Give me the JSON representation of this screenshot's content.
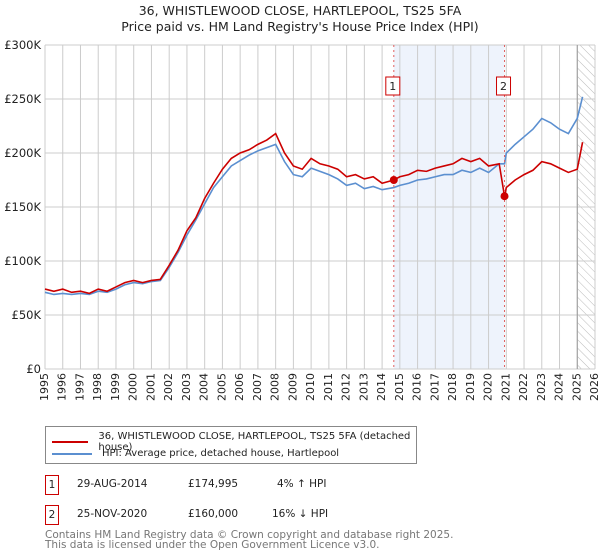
{
  "chart_data": {
    "type": "line",
    "title": "36, WHISTLEWOOD CLOSE, HARTLEPOOL, TS25 5FA",
    "subtitle": "Price paid vs. HM Land Registry's House Price Index (HPI)",
    "xlim": [
      1995,
      2026
    ],
    "ylim": [
      0,
      300000
    ],
    "yticks": [
      {
        "v": 0,
        "label": "£0"
      },
      {
        "v": 50000,
        "label": "£50K"
      },
      {
        "v": 100000,
        "label": "£100K"
      },
      {
        "v": 150000,
        "label": "£150K"
      },
      {
        "v": 200000,
        "label": "£200K"
      },
      {
        "v": 250000,
        "label": "£250K"
      },
      {
        "v": 300000,
        "label": "£300K"
      }
    ],
    "xticks": [
      "1995",
      "1996",
      "1997",
      "1998",
      "1999",
      "2000",
      "2001",
      "2002",
      "2003",
      "2004",
      "2005",
      "2006",
      "2007",
      "2008",
      "2009",
      "2010",
      "2011",
      "2012",
      "2013",
      "2014",
      "2015",
      "2016",
      "2017",
      "2018",
      "2019",
      "2020",
      "2021",
      "2022",
      "2023",
      "2024",
      "2025",
      "2026"
    ],
    "series": [
      {
        "name": "36, WHISTLEWOOD CLOSE, HARTLEPOOL, TS25 5FA (detached house)",
        "color": "#cc0000",
        "x": [
          1995,
          1995.5,
          1996,
          1996.5,
          1997,
          1997.5,
          1998,
          1998.5,
          1999,
          1999.5,
          2000,
          2000.5,
          2001,
          2001.5,
          2002,
          2002.5,
          2003,
          2003.5,
          2004,
          2004.5,
          2005,
          2005.5,
          2006,
          2006.5,
          2007,
          2007.5,
          2008,
          2008.5,
          2009,
          2009.5,
          2010,
          2010.5,
          2011,
          2011.5,
          2012,
          2012.5,
          2013,
          2013.5,
          2014,
          2014.66,
          2015,
          2015.5,
          2016,
          2016.5,
          2017,
          2017.5,
          2018,
          2018.5,
          2019,
          2019.5,
          2020,
          2020.6,
          2020.9,
          2021,
          2021.5,
          2022,
          2022.5,
          2023,
          2023.5,
          2024,
          2024.5,
          2025,
          2025.3
        ],
        "y": [
          74000,
          72000,
          74000,
          71000,
          72000,
          70000,
          74000,
          72000,
          76000,
          80000,
          82000,
          80000,
          82000,
          83000,
          96000,
          110000,
          128000,
          140000,
          158000,
          172000,
          185000,
          195000,
          200000,
          203000,
          208000,
          212000,
          218000,
          200000,
          188000,
          185000,
          195000,
          190000,
          188000,
          185000,
          178000,
          180000,
          176000,
          178000,
          172000,
          174995,
          178000,
          180000,
          184000,
          183000,
          186000,
          188000,
          190000,
          195000,
          192000,
          195000,
          188000,
          190000,
          160000,
          168000,
          175000,
          180000,
          184000,
          192000,
          190000,
          186000,
          182000,
          185000,
          210000
        ]
      },
      {
        "name": "HPI: Average price, detached house, Hartlepool",
        "color": "#5b8fd0",
        "x": [
          1995,
          1995.5,
          1996,
          1996.5,
          1997,
          1997.5,
          1998,
          1998.5,
          1999,
          1999.5,
          2000,
          2000.5,
          2001,
          2001.5,
          2002,
          2002.5,
          2003,
          2003.5,
          2004,
          2004.5,
          2005,
          2005.5,
          2006,
          2006.5,
          2007,
          2007.5,
          2008,
          2008.5,
          2009,
          2009.5,
          2010,
          2010.5,
          2011,
          2011.5,
          2012,
          2012.5,
          2013,
          2013.5,
          2014,
          2014.66,
          2015,
          2015.5,
          2016,
          2016.5,
          2017,
          2017.5,
          2018,
          2018.5,
          2019,
          2019.5,
          2020,
          2020.6,
          2020.9,
          2021,
          2021.5,
          2022,
          2022.5,
          2023,
          2023.5,
          2024,
          2024.5,
          2025,
          2025.3
        ],
        "y": [
          71000,
          69000,
          70000,
          69000,
          70000,
          69000,
          72000,
          71000,
          74000,
          78000,
          80000,
          79000,
          81000,
          82000,
          94000,
          108000,
          124000,
          138000,
          153000,
          168000,
          178000,
          188000,
          193000,
          198000,
          202000,
          205000,
          208000,
          192000,
          180000,
          178000,
          186000,
          183000,
          180000,
          176000,
          170000,
          172000,
          167000,
          169000,
          166000,
          168000,
          170000,
          172000,
          175000,
          176000,
          178000,
          180000,
          180000,
          184000,
          182000,
          186000,
          182000,
          190000,
          190000,
          200000,
          208000,
          215000,
          222000,
          232000,
          228000,
          222000,
          218000,
          232000,
          252000
        ]
      }
    ],
    "markers": [
      {
        "id": "1",
        "x": 2014.66,
        "y": 174995
      },
      {
        "id": "2",
        "x": 2020.9,
        "y": 160000
      }
    ],
    "shaded_range": [
      2014.66,
      2020.9
    ],
    "hatched_from": 2025.0
  },
  "legend": {
    "items": [
      "36, WHISTLEWOOD CLOSE, HARTLEPOOL, TS25 5FA (detached house)",
      "HPI: Average price, detached house, Hartlepool"
    ]
  },
  "transactions": [
    {
      "id": "1",
      "date": "29-AUG-2014",
      "price": "£174,995",
      "hpi": "4% ↑ HPI"
    },
    {
      "id": "2",
      "date": "25-NOV-2020",
      "price": "£160,000",
      "hpi": "16% ↓ HPI"
    }
  ],
  "footer": {
    "line1": "Contains HM Land Registry data © Crown copyright and database right 2025.",
    "line2": "This data is licensed under the Open Government Licence v3.0."
  }
}
